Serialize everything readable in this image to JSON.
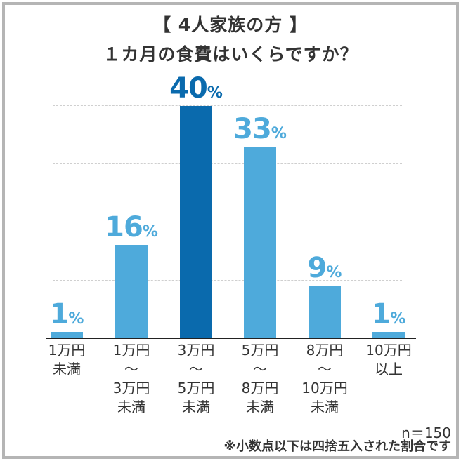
{
  "header": {
    "title_line1": "【 4人家族の方 】",
    "title_line2": "１カ月の食費はいくらですか？"
  },
  "colors": {
    "bar_default": "#4eaadb",
    "bar_highlight": "#0a6aad",
    "label_default": "#4eaadb",
    "label_highlight": "#0a6aad",
    "frame_border": "#b5b5b5",
    "text": "#333333"
  },
  "footer": {
    "sample_size": "n＝150",
    "note": "※小数点以下は四捨五入された割合です"
  },
  "chart_data": {
    "type": "bar",
    "title": "【 4人家族の方 】 １カ月の食費はいくらですか？",
    "xlabel": "",
    "ylabel": "",
    "ylim": [
      0,
      40
    ],
    "grid": true,
    "legend": null,
    "unit": "%",
    "categories": [
      "1万円未満",
      "1万円〜3万円未満",
      "3万円〜5万円未満",
      "5万円〜8万円未満",
      "8万円〜10万円未満",
      "10万円以上"
    ],
    "category_labels_display": [
      "1万円\n未満",
      "1万円\n〜\n3万円\n未満",
      "3万円\n〜\n5万円\n未満",
      "5万円\n〜\n8万円\n未満",
      "8万円\n〜\n10万円\n未満",
      "10万円\n以上"
    ],
    "values": [
      1,
      16,
      40,
      33,
      9,
      1
    ],
    "value_labels": [
      "1",
      "16",
      "40",
      "33",
      "9",
      "1"
    ],
    "highlight_index": 2,
    "sample_size": 150
  }
}
